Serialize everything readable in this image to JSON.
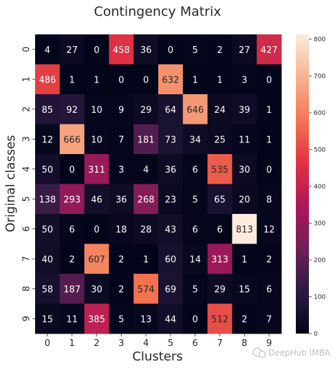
{
  "chart_data": {
    "type": "heatmap",
    "title": "Contingency Matrix",
    "xlabel": "Clusters",
    "ylabel": "Original classes",
    "x_labels": [
      "0",
      "1",
      "2",
      "3",
      "4",
      "5",
      "6",
      "7",
      "8",
      "9"
    ],
    "y_labels": [
      "0",
      "1",
      "2",
      "3",
      "4",
      "5",
      "6",
      "7",
      "8",
      "9"
    ],
    "values": [
      [
        4,
        27,
        0,
        458,
        36,
        0,
        5,
        2,
        27,
        427
      ],
      [
        486,
        1,
        1,
        0,
        0,
        632,
        1,
        1,
        3,
        0
      ],
      [
        85,
        92,
        10,
        9,
        29,
        64,
        646,
        24,
        39,
        1
      ],
      [
        12,
        666,
        10,
        7,
        181,
        73,
        34,
        25,
        11,
        1
      ],
      [
        50,
        0,
        311,
        3,
        4,
        36,
        6,
        535,
        30,
        0
      ],
      [
        138,
        293,
        46,
        36,
        268,
        23,
        5,
        65,
        20,
        8
      ],
      [
        50,
        6,
        0,
        18,
        28,
        43,
        6,
        6,
        813,
        12
      ],
      [
        40,
        2,
        607,
        2,
        1,
        60,
        14,
        313,
        1,
        2
      ],
      [
        58,
        187,
        30,
        2,
        574,
        69,
        5,
        29,
        15,
        6
      ],
      [
        15,
        11,
        385,
        5,
        13,
        44,
        0,
        512,
        2,
        7
      ]
    ],
    "colorbar": {
      "min": 0,
      "max": 813,
      "ticks": [
        0,
        100,
        200,
        300,
        400,
        500,
        600,
        700,
        800
      ],
      "colormap": "rocket",
      "colormap_stops": [
        "#03051a",
        "#2b1b42",
        "#701f57",
        "#ad1759",
        "#e13342",
        "#f37651",
        "#f6b48f",
        "#faebdd"
      ]
    }
  },
  "watermark": "DeepHub IMBA"
}
